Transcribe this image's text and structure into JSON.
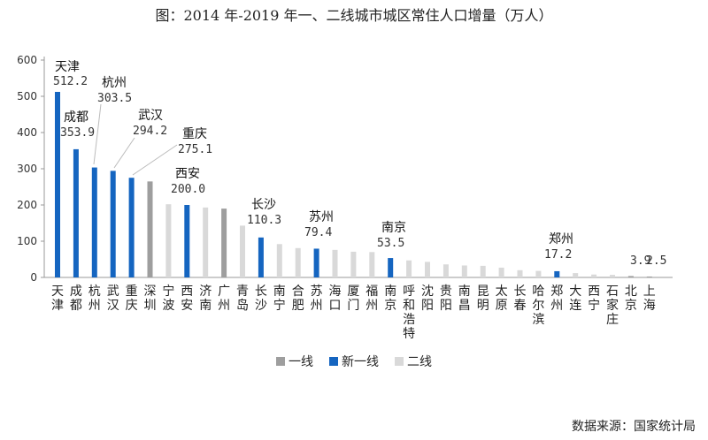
{
  "title": "图：2014 年-2019 年一、二线城市城区常住人口增量（万人）",
  "source": "数据来源：国家统计局",
  "chart_data": {
    "type": "bar",
    "ylim": [
      0,
      600
    ],
    "yticks": [
      0,
      100,
      200,
      300,
      400,
      500,
      600
    ],
    "grid": false,
    "legend_position": "bottom",
    "series_legend": [
      {
        "name": "一线",
        "color": "#9e9e9e"
      },
      {
        "name": "新一线",
        "color": "#1565c0"
      },
      {
        "name": "二线",
        "color": "#d9d9d9"
      }
    ],
    "categories": [
      "天津",
      "成都",
      "杭州",
      "武汉",
      "重庆",
      "深圳",
      "宁波",
      "西安",
      "济南",
      "广州",
      "青岛",
      "长沙",
      "南宁",
      "合肥",
      "苏州",
      "海口",
      "厦门",
      "福州",
      "南京",
      "呼和浩特",
      "沈阳",
      "贵阳",
      "南昌",
      "昆明",
      "太原",
      "长春",
      "哈尔滨",
      "郑州",
      "大连",
      "西宁",
      "石家庄",
      "北京",
      "上海"
    ],
    "values": [
      512.2,
      353.9,
      303.5,
      294.2,
      275.1,
      265,
      202,
      200.0,
      193,
      190,
      143,
      110.3,
      92,
      81,
      79.4,
      76,
      71,
      70,
      53.5,
      47,
      43,
      36,
      33,
      32,
      27,
      20,
      18,
      17.2,
      12,
      8,
      7,
      3.9,
      2.5
    ],
    "tiers": [
      "新一线",
      "新一线",
      "新一线",
      "新一线",
      "新一线",
      "一线",
      "二线",
      "新一线",
      "二线",
      "一线",
      "二线",
      "新一线",
      "二线",
      "二线",
      "新一线",
      "二线",
      "二线",
      "二线",
      "新一线",
      "二线",
      "二线",
      "二线",
      "二线",
      "二线",
      "二线",
      "二线",
      "二线",
      "新一线",
      "二线",
      "二线",
      "二线",
      "一线",
      "一线"
    ],
    "annotations": [
      {
        "city": "天津",
        "value": "512.2"
      },
      {
        "city": "成都",
        "value": "353.9"
      },
      {
        "city": "杭州",
        "value": "303.5"
      },
      {
        "city": "武汉",
        "value": "294.2"
      },
      {
        "city": "重庆",
        "value": "275.1"
      },
      {
        "city": "西安",
        "value": "200.0"
      },
      {
        "city": "长沙",
        "value": "110.3"
      },
      {
        "city": "苏州",
        "value": "79.4"
      },
      {
        "city": "南京",
        "value": "53.5"
      },
      {
        "city": "郑州",
        "value": "17.2"
      },
      {
        "value": "3.9"
      },
      {
        "value": "2.5"
      }
    ]
  }
}
